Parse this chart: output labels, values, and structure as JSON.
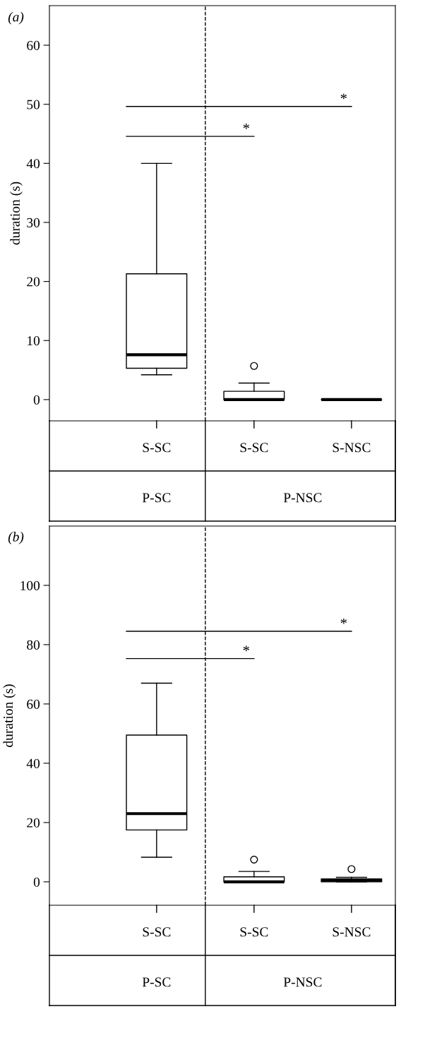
{
  "chart_data": [
    {
      "type": "box",
      "title": "(a)",
      "ylabel": "duration (s)",
      "categories": [
        "S-SC",
        "S-SC",
        "S-NSC"
      ],
      "boxes": [
        {
          "low": 4.2,
          "q1": 5.3,
          "median": 7.6,
          "q3": 21.3,
          "high": 40
        },
        {
          "low": 0,
          "q1": 0,
          "median": 0,
          "q3": 1.4,
          "high": 2.8,
          "outliers": [
            5.7
          ]
        },
        {
          "low": 0,
          "q1": 0,
          "median": 0,
          "q3": 0,
          "high": 0
        }
      ],
      "ylim": [
        -3.6,
        66.7
      ],
      "yticks": [
        0,
        10,
        20,
        30,
        40,
        50,
        60
      ],
      "grid": false,
      "annotations": [
        "*",
        "*",
        "P-SC",
        "P-NSC"
      ]
    },
    {
      "type": "box",
      "title": "(b)",
      "ylabel": "duration (s)",
      "categories": [
        "S-SC",
        "S-SC",
        "S-NSC"
      ],
      "boxes": [
        {
          "low": 8.3,
          "q1": 17.5,
          "median": 23,
          "q3": 49.5,
          "high": 67
        },
        {
          "low": 0,
          "q1": 0,
          "median": 0,
          "q3": 1.7,
          "high": 3.5,
          "outliers": [
            7.5
          ]
        },
        {
          "low": 0,
          "q1": 0,
          "median": 0.5,
          "q3": 1,
          "high": 1.5,
          "outliers": [
            4.3
          ]
        }
      ],
      "ylim": [
        -7.9,
        120
      ],
      "yticks": [
        0,
        20,
        40,
        60,
        80,
        100
      ],
      "grid": false,
      "annotations": [
        "*",
        "*",
        "P-SC",
        "P-NSC"
      ]
    }
  ]
}
